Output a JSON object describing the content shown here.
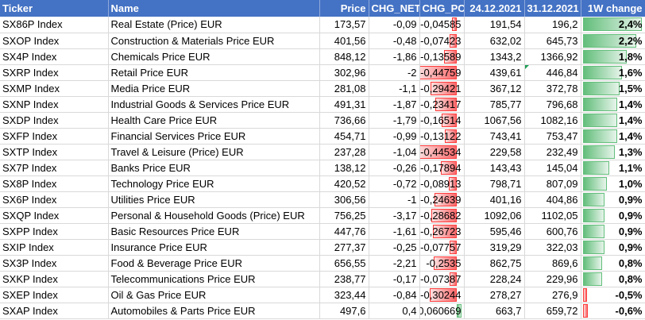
{
  "headers": [
    "Ticker",
    "Name",
    "Price",
    "CHG_NET_",
    "CHG_PCT_",
    "24.12.2021",
    "31.12.2021",
    "1W change"
  ],
  "rows": [
    {
      "ticker": "SX86P Index",
      "name": "Real Estate (Price) EUR",
      "price": "173,57",
      "net": "-0,09",
      "pct": "-0,04585",
      "d1": "191,54",
      "d2": "196,2",
      "chg": "2,4%",
      "pctv": -0.04585,
      "chgv": 2.4
    },
    {
      "ticker": "SXOP Index",
      "name": "Construction & Materials Price EUR",
      "price": "401,56",
      "net": "-0,48",
      "pct": "-0,07423",
      "d1": "632,02",
      "d2": "645,73",
      "chg": "2,2%",
      "pctv": -0.07423,
      "chgv": 2.2
    },
    {
      "ticker": "SX4P Index",
      "name": "Chemicals Price EUR",
      "price": "848,12",
      "net": "-1,86",
      "pct": "-0,13589",
      "d1": "1343,2",
      "d2": "1366,92",
      "chg": "1,8%",
      "pctv": -0.13589,
      "chgv": 1.8
    },
    {
      "ticker": "SXRP Index",
      "name": "Retail Price EUR",
      "price": "302,96",
      "net": "-2",
      "pct": "-0,44759",
      "d1": "439,61",
      "d2": "446,84",
      "chg": "1,6%",
      "pctv": -0.44759,
      "chgv": 1.6
    },
    {
      "ticker": "SXMP Index",
      "name": "Media Price EUR",
      "price": "281,08",
      "net": "-1,1",
      "pct": "-0,29421",
      "d1": "367,12",
      "d2": "372,78",
      "chg": "1,5%",
      "pctv": -0.29421,
      "chgv": 1.5
    },
    {
      "ticker": "SXNP Index",
      "name": "Industrial Goods & Services Price EUR",
      "price": "491,31",
      "net": "-1,87",
      "pct": "-0,23417",
      "d1": "785,77",
      "d2": "796,68",
      "chg": "1,4%",
      "pctv": -0.23417,
      "chgv": 1.4
    },
    {
      "ticker": "SXDP Index",
      "name": "Health Care Price EUR",
      "price": "736,66",
      "net": "-1,79",
      "pct": "-0,16514",
      "d1": "1067,56",
      "d2": "1082,16",
      "chg": "1,4%",
      "pctv": -0.16514,
      "chgv": 1.4
    },
    {
      "ticker": "SXFP Index",
      "name": "Financial Services Price EUR",
      "price": "454,71",
      "net": "-0,99",
      "pct": "-0,13122",
      "d1": "743,41",
      "d2": "753,47",
      "chg": "1,4%",
      "pctv": -0.13122,
      "chgv": 1.4
    },
    {
      "ticker": "SXTP Index",
      "name": "Travel & Leisure (Price) EUR",
      "price": "237,28",
      "net": "-1,04",
      "pct": "-0,44534",
      "d1": "229,58",
      "d2": "232,49",
      "chg": "1,3%",
      "pctv": -0.44534,
      "chgv": 1.3
    },
    {
      "ticker": "SX7P Index",
      "name": "Banks Price EUR",
      "price": "138,12",
      "net": "-0,26",
      "pct": "-0,17894",
      "d1": "143,43",
      "d2": "145,04",
      "chg": "1,1%",
      "pctv": -0.17894,
      "chgv": 1.1
    },
    {
      "ticker": "SX8P Index",
      "name": "Technology Price EUR",
      "price": "420,52",
      "net": "-0,72",
      "pct": "-0,08913",
      "d1": "798,71",
      "d2": "807,09",
      "chg": "1,0%",
      "pctv": -0.08913,
      "chgv": 1.0
    },
    {
      "ticker": "SX6P Index",
      "name": "Utilities Price EUR",
      "price": "306,56",
      "net": "-1",
      "pct": "-0,24639",
      "d1": "401,16",
      "d2": "404,86",
      "chg": "0,9%",
      "pctv": -0.24639,
      "chgv": 0.9
    },
    {
      "ticker": "SXQP Index",
      "name": "Personal & Household Goods (Price) EUR",
      "price": "756,25",
      "net": "-3,17",
      "pct": "-0,28682",
      "d1": "1092,06",
      "d2": "1102,05",
      "chg": "0,9%",
      "pctv": -0.28682,
      "chgv": 0.9
    },
    {
      "ticker": "SXPP Index",
      "name": "Basic Resources Price EUR",
      "price": "447,76",
      "net": "-1,61",
      "pct": "-0,26723",
      "d1": "595,46",
      "d2": "600,76",
      "chg": "0,9%",
      "pctv": -0.26723,
      "chgv": 0.9
    },
    {
      "ticker": "SXIP Index",
      "name": "Insurance Price EUR",
      "price": "277,37",
      "net": "-0,25",
      "pct": "-0,07757",
      "d1": "319,29",
      "d2": "322,03",
      "chg": "0,9%",
      "pctv": -0.07757,
      "chgv": 0.9
    },
    {
      "ticker": "SX3P Index",
      "name": "Food & Beverage Price EUR",
      "price": "656,55",
      "net": "-2,21",
      "pct": "-0,2535",
      "d1": "862,75",
      "d2": "869,6",
      "chg": "0,8%",
      "pctv": -0.2535,
      "chgv": 0.8
    },
    {
      "ticker": "SXKP Index",
      "name": "Telecommunications Price EUR",
      "price": "238,77",
      "net": "-0,17",
      "pct": "-0,07387",
      "d1": "228,24",
      "d2": "229,96",
      "chg": "0,8%",
      "pctv": -0.07387,
      "chgv": 0.8
    },
    {
      "ticker": "SXEP Index",
      "name": "Oil & Gas Price EUR",
      "price": "323,44",
      "net": "-0,84",
      "pct": "-0,30244",
      "d1": "278,27",
      "d2": "276,9",
      "chg": "-0,5%",
      "pctv": -0.30244,
      "chgv": -0.5
    },
    {
      "ticker": "SXAP Index",
      "name": "Automobiles & Parts Price EUR",
      "price": "497,6",
      "net": "0,4",
      "pct": "0,060669",
      "d1": "663,7",
      "d2": "659,72",
      "chg": "-0,6%",
      "pctv": 0.060669,
      "chgv": -0.6
    }
  ],
  "colors": {
    "header_bg": "#4472c4",
    "neg_bar": "#f8696b",
    "pos_bar": "#63be7b"
  }
}
